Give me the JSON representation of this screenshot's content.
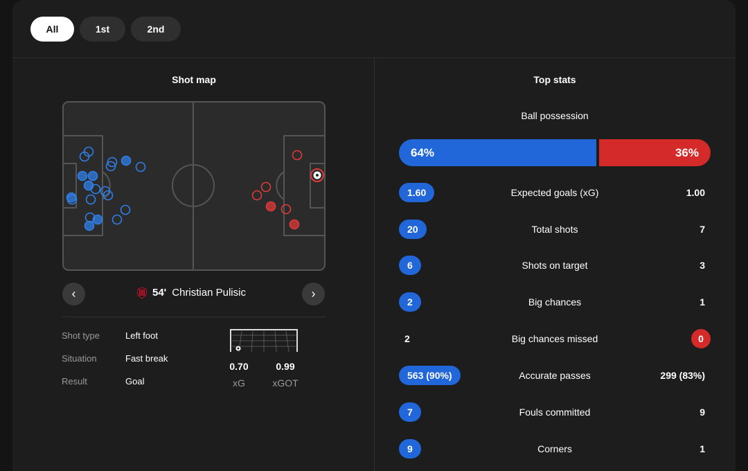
{
  "tabs": [
    {
      "label": "All",
      "active": true
    },
    {
      "label": "1st",
      "active": false
    },
    {
      "label": "2nd",
      "active": false
    }
  ],
  "shot_map": {
    "title": "Shot map",
    "selected_shot": {
      "minute": "54'",
      "player": "Christian Pulisic",
      "details": [
        {
          "label": "Shot type",
          "value": "Left foot"
        },
        {
          "label": "Situation",
          "value": "Fast break"
        },
        {
          "label": "Result",
          "value": "Goal"
        }
      ],
      "xg_value": "0.70",
      "xg_label": "xG",
      "xgot_value": "0.99",
      "xgot_label": "xGOT"
    },
    "colors": {
      "home": "#2f7fe6",
      "away": "#e03a3a"
    }
  },
  "top_stats": {
    "title": "Top stats",
    "possession": {
      "label": "Ball possession",
      "home": "64%",
      "away": "36%",
      "home_fraction": 0.64
    },
    "rows": [
      {
        "label": "Expected goals (xG)",
        "home": "1.60",
        "away": "1.00",
        "highlight": "home"
      },
      {
        "label": "Total shots",
        "home": "20",
        "away": "7",
        "highlight": "home"
      },
      {
        "label": "Shots on target",
        "home": "6",
        "away": "3",
        "highlight": "home"
      },
      {
        "label": "Big chances",
        "home": "2",
        "away": "1",
        "highlight": "home"
      },
      {
        "label": "Big chances missed",
        "home": "2",
        "away": "0",
        "highlight": "away"
      },
      {
        "label": "Accurate passes",
        "home": "563 (90%)",
        "away": "299 (83%)",
        "highlight": "home"
      },
      {
        "label": "Fouls committed",
        "home": "7",
        "away": "9",
        "highlight": "home"
      },
      {
        "label": "Corners",
        "home": "9",
        "away": "1",
        "highlight": "home"
      }
    ]
  }
}
